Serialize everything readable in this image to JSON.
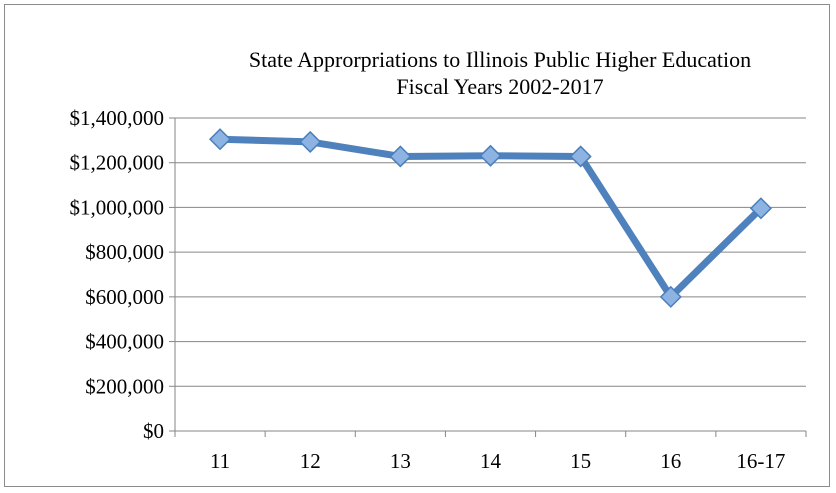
{
  "chart_data": {
    "type": "line",
    "title": "State Appropriations to Illinois Public Higher Education",
    "title_lines": [
      "State Apprοrpriations to Illinois Public Higher Education",
      "Fiscal Years 2002-2017"
    ],
    "categories": [
      "11",
      "12",
      "13",
      "14",
      "15",
      "16",
      "16-17"
    ],
    "series": [
      {
        "values": [
          1305000,
          1293000,
          1228000,
          1231000,
          1228000,
          600000,
          996000
        ]
      }
    ],
    "ylim": [
      0,
      1400000
    ],
    "yticks": [
      "$0",
      "$200,000",
      "$400,000",
      "$600,000",
      "$800,000",
      "$1,000,000",
      "$1,200,000",
      "$1,400,000"
    ],
    "ytick_values": [
      0,
      200000,
      400000,
      600000,
      800000,
      1000000,
      1200000,
      1400000
    ],
    "grid": true,
    "legend": "none",
    "colors": {
      "line": "#4f81bd",
      "marker_fill": "#8db3e2",
      "marker_edge": "#4a7ebb",
      "grid": "#868686"
    }
  }
}
